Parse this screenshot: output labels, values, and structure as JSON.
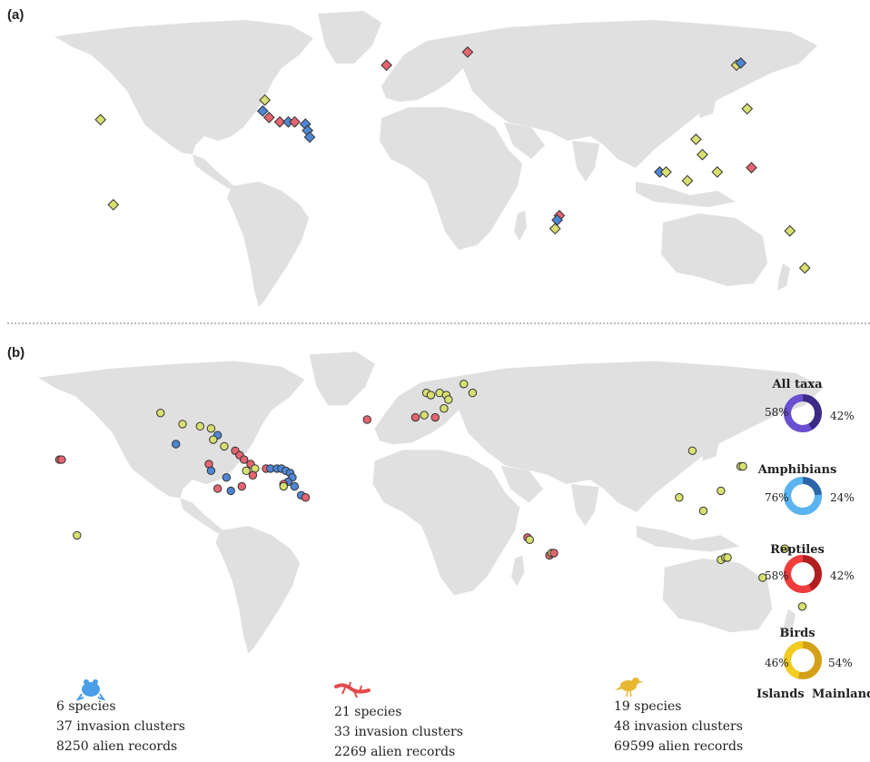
{
  "panels": {
    "a": "(a)",
    "b": "(b)"
  },
  "donuts": [
    {
      "title": "All taxa",
      "islands_pct": "58%",
      "mainland_pct": "42%",
      "islands": 58,
      "color_islands": "#6a4fd1",
      "color_mainland": "#3c2a86"
    },
    {
      "title": "Amphibians",
      "islands_pct": "76%",
      "mainland_pct": "24%",
      "islands": 76,
      "color_islands": "#5ab4f0",
      "color_mainland": "#2d66a8"
    },
    {
      "title": "Reptiles",
      "islands_pct": "58%",
      "mainland_pct": "42%",
      "islands": 58,
      "color_islands": "#f03c3c",
      "color_mainland": "#b21e1e"
    },
    {
      "title": "Birds",
      "islands_pct": "46%",
      "mainland_pct": "54%",
      "islands": 46,
      "color_islands": "#f2cc1e",
      "color_mainland": "#d4a017"
    }
  ],
  "legend": {
    "islands": "Islands",
    "mainland": "Mainland"
  },
  "taxa": [
    {
      "icon": "frog-icon",
      "color": "#4a9de8",
      "species": "6 species",
      "clusters": "37 invasion clusters",
      "records": "8250 alien records"
    },
    {
      "icon": "lizard-icon",
      "color": "#e24a4a",
      "species": "21 species",
      "clusters": "33 invasion clusters",
      "records": "2269 alien records"
    },
    {
      "icon": "bird-icon",
      "color": "#e8b832",
      "species": "19 species",
      "clusters": "48 invasion clusters",
      "records": "69599 alien records"
    }
  ],
  "colors": {
    "land": "#e0e0e0",
    "amphibian": "#4f86d4",
    "reptile": "#e56470",
    "bird": "#d8e070",
    "stroke": "#333333"
  },
  "map_a_markers": [
    {
      "lon": -24,
      "lat": 48,
      "taxon": "reptile"
    },
    {
      "lon": 14,
      "lat": 54,
      "taxon": "reptile"
    },
    {
      "lon": -82,
      "lat": 27,
      "taxon": "amphibian"
    },
    {
      "lon": -81,
      "lat": 32,
      "taxon": "bird"
    },
    {
      "lon": -79,
      "lat": 24,
      "taxon": "reptile"
    },
    {
      "lon": -74,
      "lat": 22,
      "taxon": "reptile"
    },
    {
      "lon": -70,
      "lat": 22,
      "taxon": "amphibian"
    },
    {
      "lon": -67,
      "lat": 22,
      "taxon": "reptile"
    },
    {
      "lon": -62,
      "lat": 21,
      "taxon": "amphibian"
    },
    {
      "lon": -61,
      "lat": 18,
      "taxon": "amphibian"
    },
    {
      "lon": -60,
      "lat": 15,
      "taxon": "amphibian"
    },
    {
      "lon": -158,
      "lat": 23,
      "taxon": "bird"
    },
    {
      "lon": -152,
      "lat": -16,
      "taxon": "bird"
    },
    {
      "lon": 57,
      "lat": -21,
      "taxon": "reptile"
    },
    {
      "lon": 56,
      "lat": -23,
      "taxon": "amphibian"
    },
    {
      "lon": 55,
      "lat": -27,
      "taxon": "bird"
    },
    {
      "lon": 140,
      "lat": 48,
      "taxon": "bird"
    },
    {
      "lon": 142,
      "lat": 49,
      "taxon": "amphibian"
    },
    {
      "lon": 145,
      "lat": 28,
      "taxon": "bird"
    },
    {
      "lon": 121,
      "lat": 14,
      "taxon": "bird"
    },
    {
      "lon": 124,
      "lat": 7,
      "taxon": "bird"
    },
    {
      "lon": 104,
      "lat": -1,
      "taxon": "amphibian"
    },
    {
      "lon": 107,
      "lat": -1,
      "taxon": "bird"
    },
    {
      "lon": 117,
      "lat": -5,
      "taxon": "bird"
    },
    {
      "lon": 131,
      "lat": -1,
      "taxon": "bird"
    },
    {
      "lon": 147,
      "lat": 1,
      "taxon": "reptile"
    },
    {
      "lon": 165,
      "lat": -28,
      "taxon": "bird"
    },
    {
      "lon": 172,
      "lat": -45,
      "taxon": "bird"
    }
  ],
  "map_b_markers": [
    {
      "lon": -168,
      "lat": 22,
      "taxon": "reptile"
    },
    {
      "lon": -167,
      "lat": 22,
      "taxon": "reptile"
    },
    {
      "lon": -160,
      "lat": -12,
      "taxon": "bird"
    },
    {
      "lon": -122,
      "lat": 43,
      "taxon": "bird"
    },
    {
      "lon": -112,
      "lat": 38,
      "taxon": "bird"
    },
    {
      "lon": -104,
      "lat": 37,
      "taxon": "bird"
    },
    {
      "lon": -99,
      "lat": 36,
      "taxon": "bird"
    },
    {
      "lon": -96,
      "lat": 33,
      "taxon": "amphibian"
    },
    {
      "lon": -98,
      "lat": 31,
      "taxon": "bird"
    },
    {
      "lon": -115,
      "lat": 29,
      "taxon": "amphibian"
    },
    {
      "lon": -93,
      "lat": 28,
      "taxon": "bird"
    },
    {
      "lon": -88,
      "lat": 26,
      "taxon": "reptile"
    },
    {
      "lon": -86,
      "lat": 24,
      "taxon": "reptile"
    },
    {
      "lon": -84,
      "lat": 22,
      "taxon": "reptile"
    },
    {
      "lon": -81,
      "lat": 20,
      "taxon": "reptile"
    },
    {
      "lon": -79,
      "lat": 18,
      "taxon": "bird"
    },
    {
      "lon": -80,
      "lat": 15,
      "taxon": "reptile"
    },
    {
      "lon": -100,
      "lat": 20,
      "taxon": "reptile"
    },
    {
      "lon": -99,
      "lat": 17,
      "taxon": "amphibian"
    },
    {
      "lon": -92,
      "lat": 14,
      "taxon": "amphibian"
    },
    {
      "lon": -96,
      "lat": 9,
      "taxon": "reptile"
    },
    {
      "lon": -90,
      "lat": 8,
      "taxon": "amphibian"
    },
    {
      "lon": -85,
      "lat": 10,
      "taxon": "reptile"
    },
    {
      "lon": -83,
      "lat": 17,
      "taxon": "bird"
    },
    {
      "lon": -74,
      "lat": 18,
      "taxon": "reptile"
    },
    {
      "lon": -72,
      "lat": 18,
      "taxon": "amphibian"
    },
    {
      "lon": -69,
      "lat": 18,
      "taxon": "amphibian"
    },
    {
      "lon": -67,
      "lat": 18,
      "taxon": "amphibian"
    },
    {
      "lon": -65,
      "lat": 17,
      "taxon": "amphibian"
    },
    {
      "lon": -63,
      "lat": 16,
      "taxon": "amphibian"
    },
    {
      "lon": -62,
      "lat": 14,
      "taxon": "amphibian"
    },
    {
      "lon": -64,
      "lat": 12,
      "taxon": "amphibian"
    },
    {
      "lon": -66,
      "lat": 11,
      "taxon": "reptile"
    },
    {
      "lon": -66,
      "lat": 10,
      "taxon": "bird"
    },
    {
      "lon": -61,
      "lat": 10,
      "taxon": "amphibian"
    },
    {
      "lon": -58,
      "lat": 6,
      "taxon": "amphibian"
    },
    {
      "lon": -56,
      "lat": 5,
      "taxon": "reptile"
    },
    {
      "lon": -28,
      "lat": 40,
      "taxon": "reptile"
    },
    {
      "lon": -6,
      "lat": 41,
      "taxon": "reptile"
    },
    {
      "lon": -2,
      "lat": 42,
      "taxon": "bird"
    },
    {
      "lon": 3,
      "lat": 41,
      "taxon": "reptile"
    },
    {
      "lon": -1,
      "lat": 52,
      "taxon": "bird"
    },
    {
      "lon": 1,
      "lat": 51,
      "taxon": "bird"
    },
    {
      "lon": 5,
      "lat": 52,
      "taxon": "bird"
    },
    {
      "lon": 8,
      "lat": 51,
      "taxon": "bird"
    },
    {
      "lon": 9,
      "lat": 49,
      "taxon": "bird"
    },
    {
      "lon": 16,
      "lat": 56,
      "taxon": "bird"
    },
    {
      "lon": 20,
      "lat": 52,
      "taxon": "bird"
    },
    {
      "lon": 7,
      "lat": 45,
      "taxon": "bird"
    },
    {
      "lon": 45,
      "lat": -13,
      "taxon": "reptile"
    },
    {
      "lon": 46,
      "lat": -14,
      "taxon": "bird"
    },
    {
      "lon": 55,
      "lat": -21,
      "taxon": "reptile"
    },
    {
      "lon": 56,
      "lat": -20,
      "taxon": "bird"
    },
    {
      "lon": 57,
      "lat": -20,
      "taxon": "reptile"
    },
    {
      "lon": 120,
      "lat": 26,
      "taxon": "bird"
    },
    {
      "lon": 114,
      "lat": 5,
      "taxon": "bird"
    },
    {
      "lon": 142,
      "lat": 19,
      "taxon": "bird"
    },
    {
      "lon": 143,
      "lat": 19,
      "taxon": "bird"
    },
    {
      "lon": 133,
      "lat": 8,
      "taxon": "bird"
    },
    {
      "lon": 125,
      "lat": -1,
      "taxon": "bird"
    },
    {
      "lon": 162,
      "lat": -18,
      "taxon": "bird"
    },
    {
      "lon": 133,
      "lat": -23,
      "taxon": "bird"
    },
    {
      "lon": 135,
      "lat": -22,
      "taxon": "bird"
    },
    {
      "lon": 136,
      "lat": -22,
      "taxon": "bird"
    },
    {
      "lon": 152,
      "lat": -31,
      "taxon": "bird"
    },
    {
      "lon": 170,
      "lat": -44,
      "taxon": "bird"
    }
  ]
}
